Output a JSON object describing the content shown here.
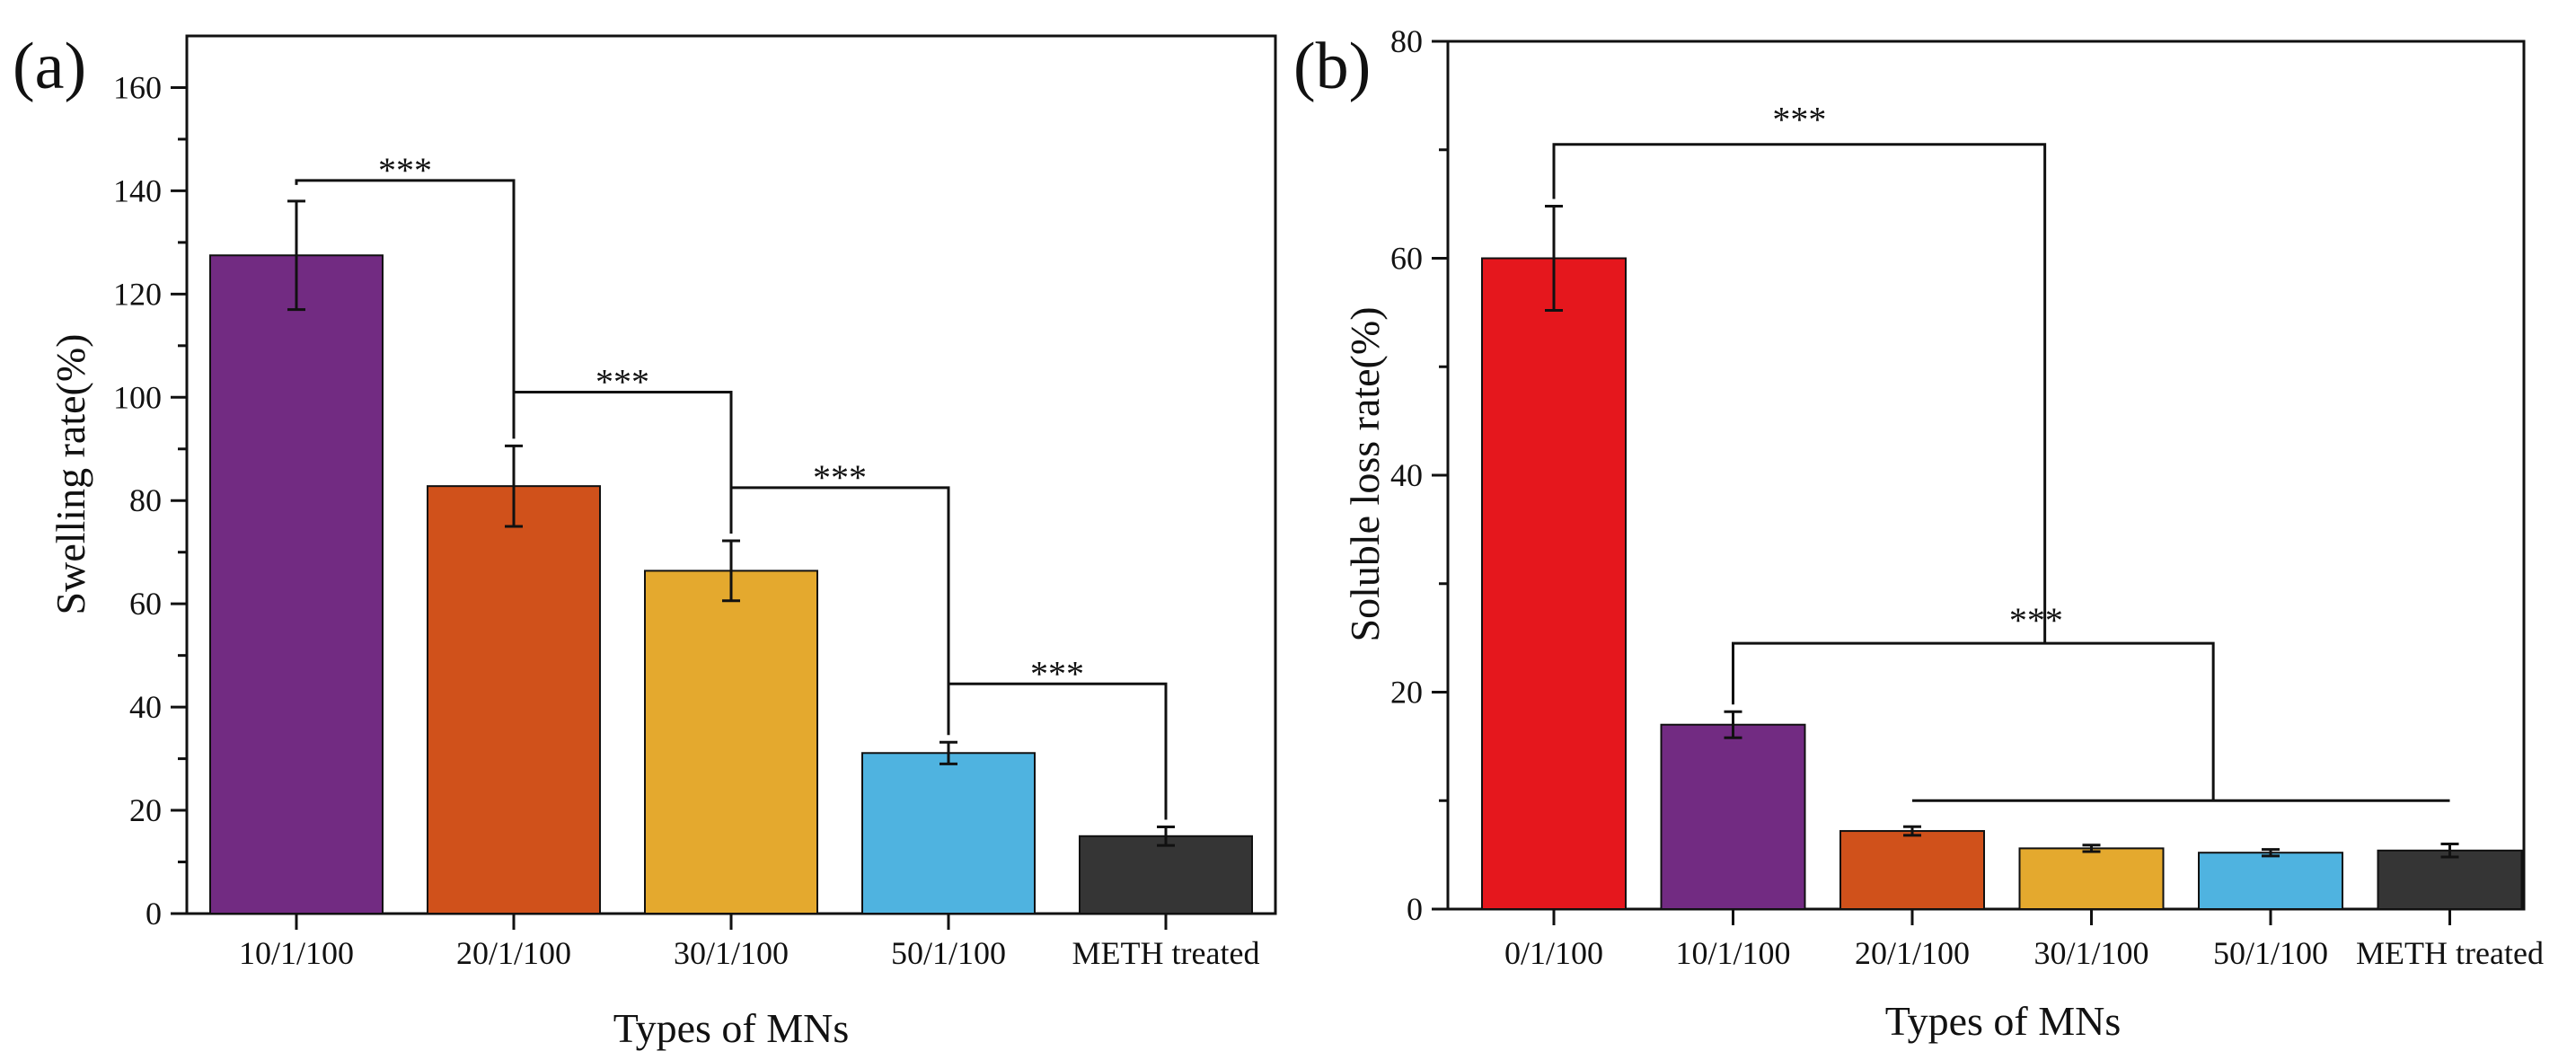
{
  "chart_data": [
    {
      "panel": "(a)",
      "type": "bar",
      "title": "",
      "xlabel": "Types of MNs",
      "ylabel": "Swelling rate(%)",
      "ylim": [
        0,
        170
      ],
      "yticks": [
        0,
        20,
        40,
        60,
        80,
        100,
        120,
        140,
        160
      ],
      "categories": [
        "10/1/100",
        "20/1/100",
        "30/1/100",
        "50/1/100",
        "METH treated"
      ],
      "values": [
        127.5,
        82.8,
        66.4,
        31.1,
        15.0
      ],
      "errors": [
        10.5,
        7.8,
        5.8,
        2.1,
        1.8
      ],
      "colors": [
        "#722B82",
        "#D0511B",
        "#E4A92E",
        "#4FB3E0",
        "#353535"
      ],
      "significance": [
        {
          "from": 0,
          "to": 1,
          "level": 142,
          "label": "***"
        },
        {
          "from": 1,
          "to": 2,
          "level": 101,
          "label": "***"
        },
        {
          "from": 2,
          "to": 3,
          "level": 82.5,
          "label": "***"
        },
        {
          "from": 3,
          "to": 4,
          "level": 44.5,
          "label": "***"
        }
      ]
    },
    {
      "panel": "(b)",
      "type": "bar",
      "title": "",
      "xlabel": "Types of MNs",
      "ylabel": "Soluble loss rate(%)",
      "ylim": [
        0,
        80
      ],
      "yticks": [
        0,
        20,
        40,
        60,
        80
      ],
      "categories": [
        "0/1/100",
        "10/1/100",
        "20/1/100",
        "30/1/100",
        "50/1/100",
        "METH treated"
      ],
      "values": [
        60.0,
        17.0,
        7.2,
        5.6,
        5.2,
        5.4
      ],
      "errors": [
        4.8,
        1.2,
        0.4,
        0.3,
        0.3,
        0.6
      ],
      "colors": [
        "#E5171D",
        "#722B82",
        "#D0511B",
        "#E4A92E",
        "#4FB3E0",
        "#353535"
      ],
      "significance": [
        {
          "from": 0,
          "to_x_between": [
            1,
            5
          ],
          "level": 70.5,
          "label": "***",
          "group": "0/1/100 vs rest"
        },
        {
          "from": 1,
          "to_x_between": [
            2,
            5
          ],
          "level": 24.5,
          "label": "***",
          "group": "10/1/100 vs rest"
        }
      ]
    }
  ]
}
